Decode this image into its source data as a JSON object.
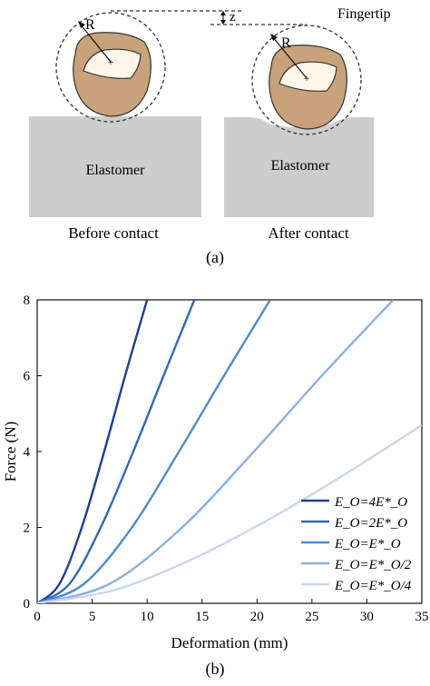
{
  "figure_a": {
    "label": "(a)",
    "fingertip_label": "Fingertip",
    "left_radius_label": "R",
    "right_radius_label": "R",
    "displacement_label": "z",
    "left_block_label": "Elastomer",
    "right_block_label": "Elastomer",
    "left_caption": "Before contact",
    "right_caption": "After contact",
    "colors": {
      "block": "#cdcdcd",
      "fingertip": "#c8a27a",
      "nail": "#fff8ea",
      "outline": "#333333"
    }
  },
  "figure_b": {
    "label": "(b)"
  },
  "chart_data": {
    "type": "line",
    "xlabel": "Deformation (mm)",
    "ylabel": "Force (N)",
    "xlim": [
      0,
      35
    ],
    "ylim": [
      0,
      8
    ],
    "xticks": [
      0,
      5,
      10,
      15,
      20,
      25,
      30,
      35
    ],
    "yticks": [
      0,
      2,
      4,
      6,
      8
    ],
    "grid": false,
    "legend_position": "bottom-right",
    "series": [
      {
        "name": "E_O=4E*_O",
        "color": "#1f3f8f",
        "x": [
          0,
          2,
          4,
          6,
          8,
          10
        ],
        "y": [
          0,
          0.5,
          1.95,
          3.9,
          6.0,
          8.0
        ]
      },
      {
        "name": "E_O=2E*_O",
        "color": "#2f6bb5",
        "x": [
          0,
          2.9,
          5.7,
          8.6,
          11.5,
          14.3
        ],
        "y": [
          0,
          0.5,
          1.95,
          3.9,
          6.0,
          8.0
        ]
      },
      {
        "name": "E_O=E*_O",
        "color": "#4d8ccb",
        "x": [
          0,
          4.2,
          8.5,
          12.7,
          17.0,
          21.2
        ],
        "y": [
          0,
          0.5,
          1.95,
          3.9,
          6.0,
          8.0
        ]
      },
      {
        "name": "E_O=E*_O/2",
        "color": "#8cb0df",
        "x": [
          0,
          6.5,
          13.0,
          19.4,
          25.9,
          32.4
        ],
        "y": [
          0,
          0.5,
          1.95,
          3.9,
          6.0,
          8.0
        ]
      },
      {
        "name": "E_O=E*_O/4",
        "color": "#c9d8ee",
        "x": [
          0,
          7,
          14,
          21,
          28,
          35
        ],
        "y": [
          0,
          0.35,
          1.15,
          2.2,
          3.4,
          4.7
        ]
      }
    ]
  }
}
